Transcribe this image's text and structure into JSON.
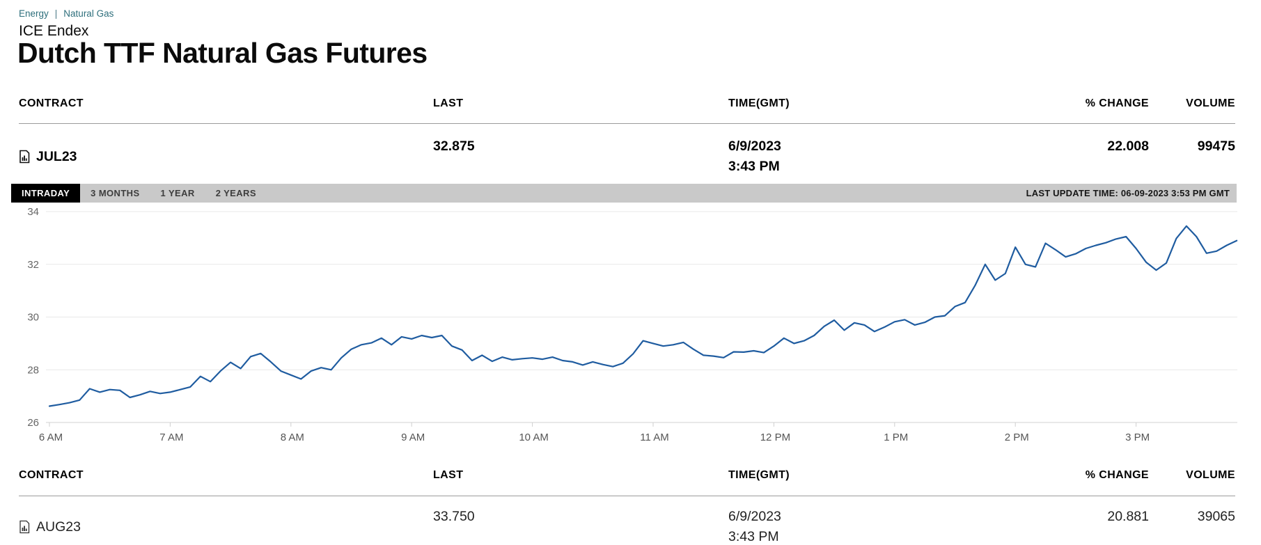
{
  "breadcrumb": {
    "items": [
      "Energy",
      "Natural Gas"
    ],
    "separator": "|"
  },
  "exchange": "ICE Endex",
  "title": "Dutch TTF Natural Gas Futures",
  "colors": {
    "breadcrumb_link": "#2e6f7c",
    "tab_bar_bg": "#c9c9c9",
    "tab_active_bg": "#000000",
    "tab_active_text": "#ffffff",
    "chart_line": "#1f5ca0",
    "gridline": "#e9e9e9",
    "axis_label": "#666666"
  },
  "top_table": {
    "headers": {
      "contract": "CONTRACT",
      "last": "LAST",
      "time": "TIME(GMT)",
      "change": "% CHANGE",
      "volume": "VOLUME"
    },
    "row": {
      "contract": "JUL23",
      "last": "32.875",
      "date": "6/9/2023",
      "time": "3:43 PM",
      "change": "22.008",
      "volume": "99475"
    }
  },
  "tabs": {
    "items": [
      {
        "label": "INTRADAY",
        "active": true
      },
      {
        "label": "3 MONTHS",
        "active": false
      },
      {
        "label": "1 YEAR",
        "active": false
      },
      {
        "label": "2 YEARS",
        "active": false
      }
    ],
    "last_update": "LAST UPDATE TIME: 06-09-2023 3:53 PM GMT"
  },
  "chart_data": {
    "type": "line",
    "contract": "JUL23",
    "x_ticks": [
      "6 AM",
      "7 AM",
      "8 AM",
      "9 AM",
      "10 AM",
      "11 AM",
      "12 PM",
      "1 PM",
      "2 PM",
      "3 PM"
    ],
    "y_ticks": [
      34,
      32,
      30,
      28,
      26
    ],
    "ylim": [
      26,
      34
    ],
    "grid": "horizontal",
    "legend": "none",
    "series": [
      {
        "name": "JUL23 intraday price",
        "color": "#1f5ca0",
        "start_time_gmt": "06:00",
        "interval_minutes": 5,
        "values": [
          26.62,
          26.68,
          26.75,
          26.85,
          27.28,
          27.15,
          27.25,
          27.22,
          26.95,
          27.05,
          27.18,
          27.1,
          27.15,
          27.25,
          27.35,
          27.75,
          27.55,
          27.95,
          28.28,
          28.05,
          28.5,
          28.62,
          28.3,
          27.95,
          27.8,
          27.65,
          27.95,
          28.08,
          28.0,
          28.45,
          28.78,
          28.95,
          29.02,
          29.2,
          28.95,
          29.25,
          29.17,
          29.3,
          29.22,
          29.3,
          28.9,
          28.75,
          28.35,
          28.55,
          28.32,
          28.48,
          28.38,
          28.42,
          28.45,
          28.4,
          28.48,
          28.35,
          28.3,
          28.18,
          28.3,
          28.2,
          28.12,
          28.25,
          28.6,
          29.1,
          29.0,
          28.9,
          28.95,
          29.04,
          28.78,
          28.55,
          28.52,
          28.46,
          28.68,
          28.67,
          28.72,
          28.65,
          28.9,
          29.2,
          29.0,
          29.1,
          29.3,
          29.65,
          29.88,
          29.5,
          29.78,
          29.7,
          29.45,
          29.62,
          29.82,
          29.9,
          29.7,
          29.8,
          30.0,
          30.05,
          30.4,
          30.55,
          31.2,
          32.0,
          31.4,
          31.65,
          32.65,
          32.0,
          31.9,
          32.8,
          32.55,
          32.28,
          32.4,
          32.6,
          32.72,
          32.82,
          32.96,
          33.05,
          32.6,
          32.08,
          31.78,
          32.05,
          32.98,
          33.45,
          33.05,
          32.42,
          32.5,
          32.72,
          32.9
        ]
      }
    ]
  },
  "bottom_table": {
    "headers": {
      "contract": "CONTRACT",
      "last": "LAST",
      "time": "TIME(GMT)",
      "change": "% CHANGE",
      "volume": "VOLUME"
    },
    "row": {
      "contract": "AUG23",
      "last": "33.750",
      "date": "6/9/2023",
      "time": "3:43 PM",
      "change": "20.881",
      "volume": "39065"
    }
  }
}
